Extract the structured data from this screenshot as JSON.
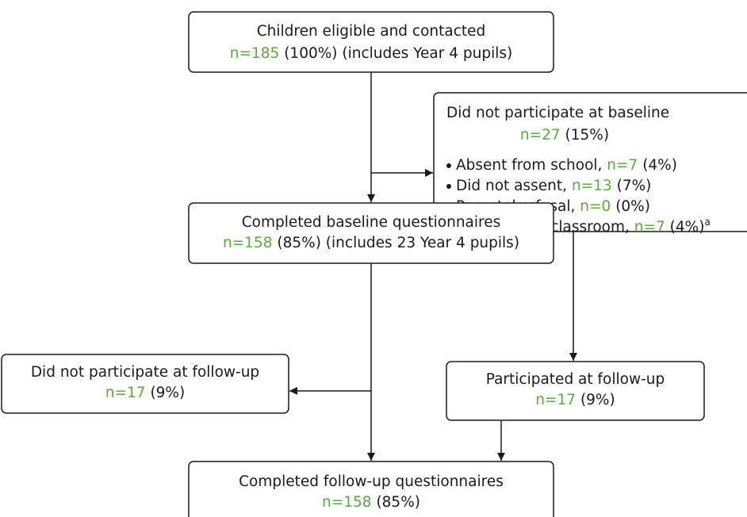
{
  "nodes": [
    {
      "title": "Children eligible and contacted",
      "n": "n=185",
      "detail": "(100%) (includes Year 4 pupils)"
    },
    {
      "title": "Did not participate at baseline",
      "n": "n=27",
      "detail": "(15%)",
      "items": [
        {
          "label": "Absent from school,",
          "n": "n=7",
          "detail": "(4%)"
        },
        {
          "label": "Did not assent,",
          "n": "n=13",
          "detail": "(7%)"
        },
        {
          "label": "Parental refusal,",
          "n": "n=0",
          "detail": "(0%)"
        },
        {
          "label": "Absent from classroom,",
          "n": "n=7",
          "detail": "(4%)",
          "note": "a"
        }
      ]
    },
    {
      "title": "Completed baseline questionnaires",
      "n": "n=158",
      "detail": "(85%) (includes 23 Year 4 pupils)"
    },
    {
      "title": "Did not participate at follow-up",
      "n": "n=17",
      "detail": "(9%)"
    },
    {
      "title": "Participated at follow-up",
      "n": "n=17",
      "detail": "(9%)"
    },
    {
      "title": "Completed follow-up questionnaires",
      "n": "n=158",
      "detail": "(85%)"
    }
  ]
}
